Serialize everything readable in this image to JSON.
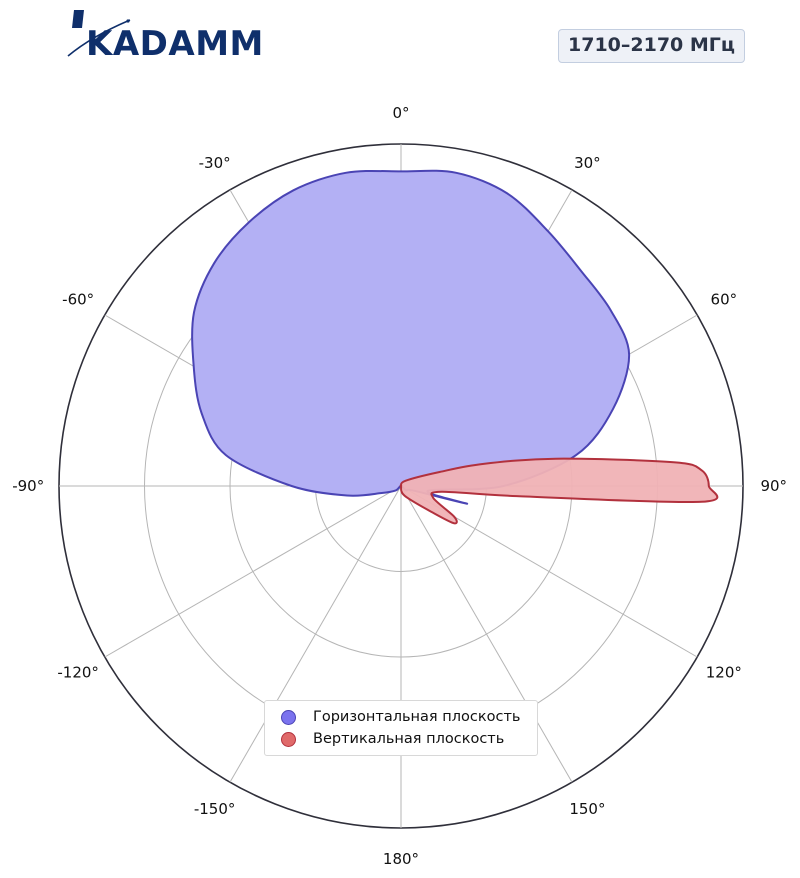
{
  "brand": {
    "name": "KADAMM",
    "color": "#0f2f6b"
  },
  "band_label": "1710–2170 МГц",
  "chart_data": {
    "type": "polar-area",
    "theta_unit": "deg",
    "theta_zero": "top",
    "theta_direction": "clockwise",
    "angle_ticks": [
      {
        "angle": 0,
        "label": "0°"
      },
      {
        "angle": 30,
        "label": "30°"
      },
      {
        "angle": 60,
        "label": "60°"
      },
      {
        "angle": 90,
        "label": "90°"
      },
      {
        "angle": 120,
        "label": "120°"
      },
      {
        "angle": 150,
        "label": "150°"
      },
      {
        "angle": 180,
        "label": "180°"
      },
      {
        "angle": -150,
        "label": "-150°"
      },
      {
        "angle": -120,
        "label": "-120°"
      },
      {
        "angle": -90,
        "label": "-90°"
      },
      {
        "angle": -60,
        "label": "-60°"
      },
      {
        "angle": -30,
        "label": "-30°"
      }
    ],
    "radial_range": [
      0,
      1
    ],
    "radial_gridlines": [
      0.25,
      0.5,
      0.75,
      1.0
    ],
    "radial_tick_labels": false,
    "grid": true,
    "legend_position": "bottom-center",
    "series": [
      {
        "name": "Горизонтальная плоскость",
        "color": "#7b73ee",
        "fill": "#b3b0f4",
        "stroke": "#4a44b4",
        "points": [
          [
            0,
            0.92
          ],
          [
            10,
            0.93
          ],
          [
            20,
            0.91
          ],
          [
            30,
            0.86
          ],
          [
            40,
            0.82
          ],
          [
            50,
            0.8
          ],
          [
            60,
            0.77
          ],
          [
            70,
            0.66
          ],
          [
            80,
            0.52
          ],
          [
            90,
            0.3
          ],
          [
            100,
            0.08
          ],
          [
            105,
            0.2
          ],
          [
            110,
            0.04
          ],
          [
            130,
            0.02
          ],
          [
            180,
            0.0
          ],
          [
            -130,
            0.02
          ],
          [
            -110,
            0.06
          ],
          [
            -100,
            0.16
          ],
          [
            -90,
            0.32
          ],
          [
            -80,
            0.52
          ],
          [
            -70,
            0.62
          ],
          [
            -60,
            0.7
          ],
          [
            -50,
            0.79
          ],
          [
            -40,
            0.85
          ],
          [
            -30,
            0.89
          ],
          [
            -20,
            0.92
          ],
          [
            -10,
            0.93
          ]
        ]
      },
      {
        "name": "Вертикальная плоскость",
        "color": "#e06a6a",
        "fill": "#f0b2b5",
        "stroke": "#b2313d",
        "points": [
          [
            0,
            0.0
          ],
          [
            40,
            0.02
          ],
          [
            70,
            0.12
          ],
          [
            75,
            0.25
          ],
          [
            80,
            0.46
          ],
          [
            85,
            0.8
          ],
          [
            87,
            0.88
          ],
          [
            90,
            0.9
          ],
          [
            93,
            0.88
          ],
          [
            95,
            0.34
          ],
          [
            98,
            0.12
          ],
          [
            110,
            0.1
          ],
          [
            120,
            0.18
          ],
          [
            125,
            0.19
          ],
          [
            130,
            0.12
          ],
          [
            160,
            0.03
          ],
          [
            180,
            0.0
          ],
          [
            -90,
            0.0
          ]
        ]
      }
    ]
  }
}
